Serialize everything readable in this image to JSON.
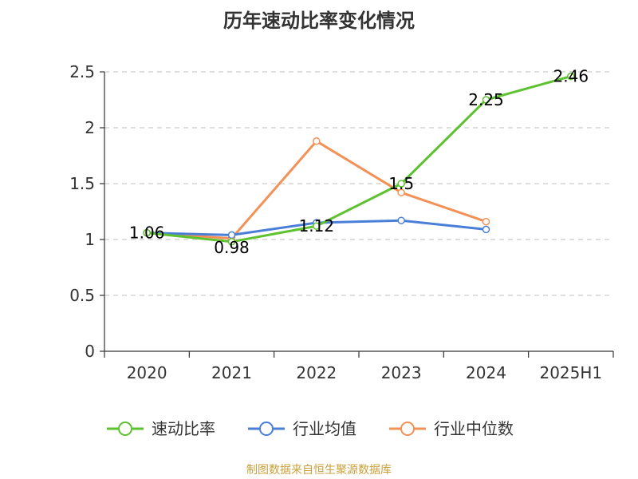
{
  "source_note": "制图数据来自恒生聚源数据库",
  "chart_data": {
    "type": "line",
    "title": "历年速动比率变化情况",
    "categories": [
      "2020",
      "2021",
      "2022",
      "2023",
      "2024",
      "2025H1"
    ],
    "ylim": [
      0,
      2.5
    ],
    "yticks": [
      "0",
      "0.5",
      "1",
      "1.5",
      "2",
      "2.5"
    ],
    "grid": true,
    "legend_position": "bottom",
    "series": [
      {
        "name": "速动比率",
        "color": "#5ec12f",
        "values": [
          1.06,
          0.98,
          1.12,
          1.5,
          2.25,
          2.46
        ],
        "labels": [
          "1.06",
          "0.98",
          "1.12",
          "1.5",
          "2.25",
          "2.46"
        ]
      },
      {
        "name": "行业均值",
        "color": "#4a7fd8",
        "values": [
          1.06,
          1.04,
          1.15,
          1.17,
          1.09,
          null
        ]
      },
      {
        "name": "行业中位数",
        "color": "#f39157",
        "values": [
          1.06,
          1.01,
          1.88,
          1.42,
          1.16,
          null
        ]
      }
    ]
  }
}
